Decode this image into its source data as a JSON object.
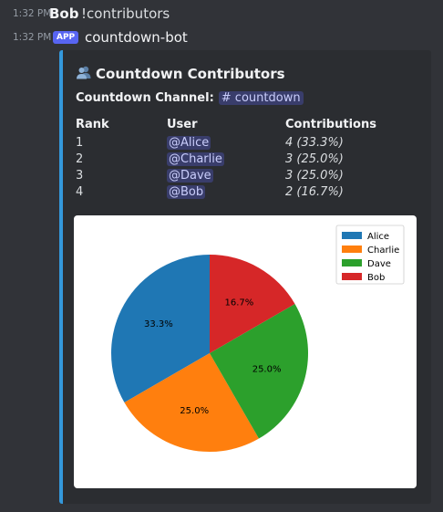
{
  "messages": [
    {
      "time": "1:32 PM",
      "author": "Bob",
      "text": "!contributors"
    },
    {
      "time": "1:32 PM",
      "badge": "APP",
      "author": "countdown-bot"
    }
  ],
  "embed": {
    "accent_color": "#3498db",
    "title_icon": "busts-in-silhouette-icon",
    "title": "Countdown Contributors",
    "channel_label": "Countdown Channel:",
    "channel_mention": "# countdown",
    "table": {
      "headers": [
        "Rank",
        "User",
        "Contributions"
      ],
      "rows": [
        {
          "rank": "1",
          "user": "@Alice",
          "count": "4",
          "pct": "(33.3%)"
        },
        {
          "rank": "2",
          "user": "@Charlie",
          "count": "3",
          "pct": "(25.0%)"
        },
        {
          "rank": "3",
          "user": "@Dave",
          "count": "3",
          "pct": "(25.0%)"
        },
        {
          "rank": "4",
          "user": "@Bob",
          "count": "2",
          "pct": "(16.7%)"
        }
      ]
    }
  },
  "chart_data": {
    "type": "pie",
    "categories": [
      "Alice",
      "Charlie",
      "Dave",
      "Bob"
    ],
    "values": [
      4,
      3,
      3,
      2
    ],
    "labels": [
      "33.3%",
      "25.0%",
      "25.0%",
      "16.7%"
    ],
    "colors": [
      "#1f77b4",
      "#ff7f0e",
      "#2ca02c",
      "#d62728"
    ],
    "legend_position": "top-right",
    "start_angle_deg": 90,
    "direction": "counterclockwise"
  }
}
